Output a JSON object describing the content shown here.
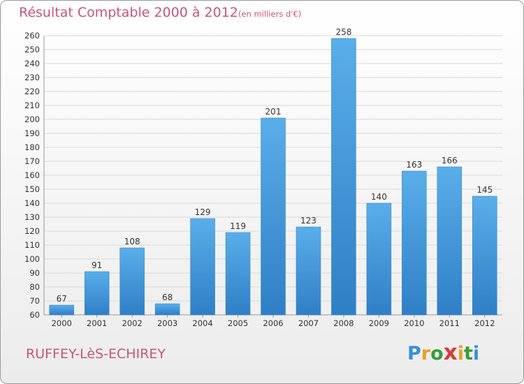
{
  "title": "Résultat Comptable 2000 à 2012",
  "subtitle": "(en milliers d'€)",
  "city": "RUFFEY-LèS-ECHIREY",
  "logo": {
    "letters": [
      "P",
      "r",
      "o",
      "x",
      "i",
      "t",
      "i"
    ],
    "colors": [
      "#3a8fd8",
      "#e8a020",
      "#3a9a3a",
      "#d83a3a",
      "#e8a020",
      "#3a9a3a",
      "#3a8fd8"
    ]
  },
  "colors": {
    "accent": "#c9547a",
    "bar": "#4a9ee0"
  },
  "chart_data": {
    "type": "bar",
    "categories": [
      "2000",
      "2001",
      "2002",
      "2003",
      "2004",
      "2005",
      "2006",
      "2007",
      "2008",
      "2009",
      "2010",
      "2011",
      "2012"
    ],
    "values": [
      67,
      91,
      108,
      68,
      129,
      119,
      201,
      123,
      258,
      140,
      163,
      166,
      145
    ],
    "ylim": [
      60,
      260
    ],
    "yticks": [
      60,
      70,
      80,
      90,
      100,
      110,
      120,
      130,
      140,
      150,
      160,
      170,
      180,
      190,
      200,
      210,
      220,
      230,
      240,
      250,
      260
    ],
    "grid": true
  }
}
